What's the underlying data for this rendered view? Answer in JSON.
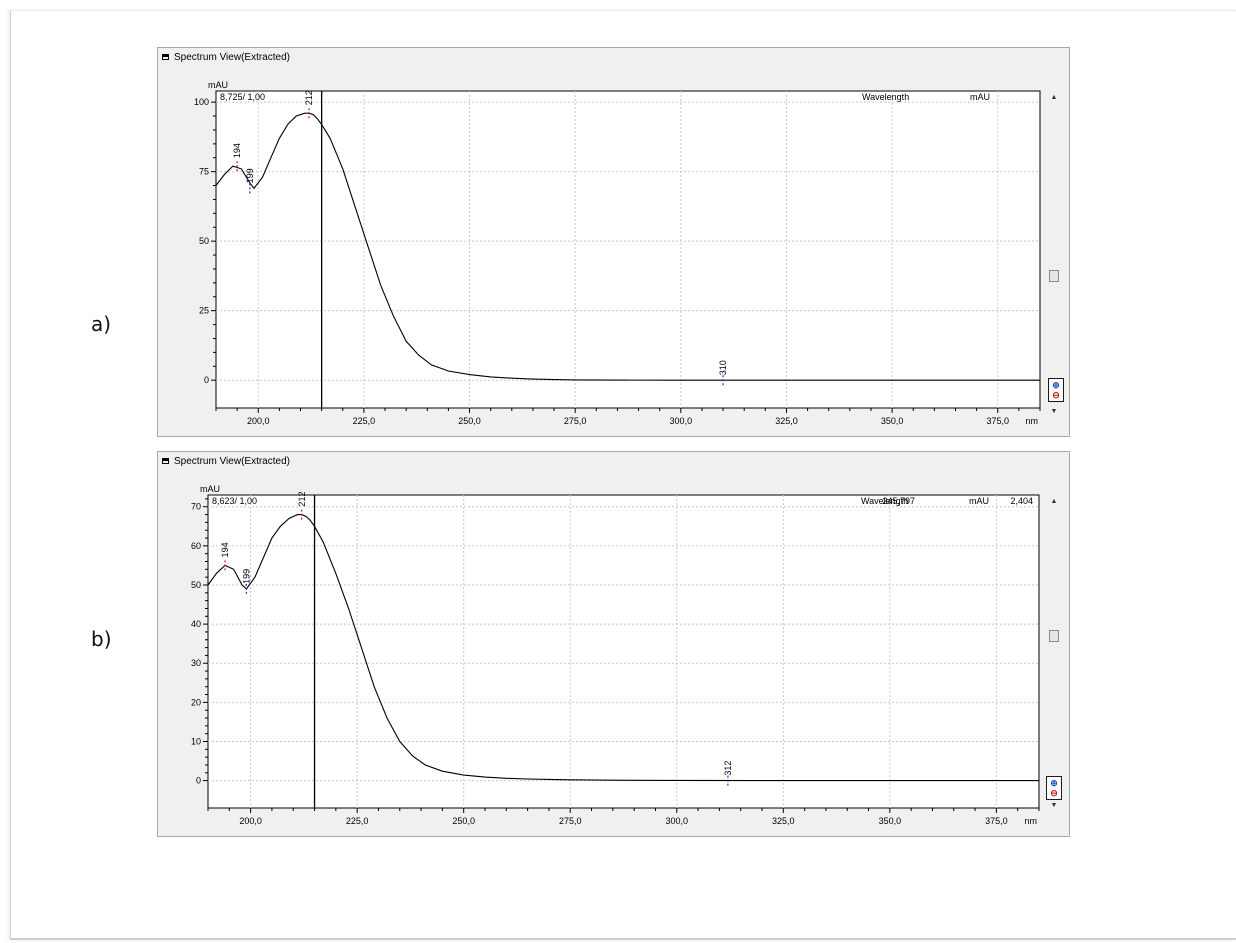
{
  "figure_labels": [
    "a)",
    "b)"
  ],
  "chart_data": [
    {
      "type": "line",
      "panel_title": "Spectrum View(Extracted)",
      "ylabel": "mAU",
      "xlabel": "nm",
      "corner_readout": "8,725/ 1,00",
      "readout_fields": [
        "Wavelength",
        "",
        "mAU",
        ""
      ],
      "xlim": [
        190,
        385
      ],
      "ylim": [
        -10,
        104
      ],
      "x_ticks": [
        200,
        225,
        250,
        275,
        300,
        325,
        350,
        375
      ],
      "x_tick_labels": [
        "200,0",
        "225,0",
        "250,0",
        "275,0",
        "300,0",
        "325,0",
        "350,0",
        "375,0"
      ],
      "y_ticks": [
        0,
        25,
        50,
        75,
        100
      ],
      "y_tick_labels": [
        "0",
        "25",
        "50",
        "75",
        "100"
      ],
      "cursor_x": 215,
      "grid": true,
      "series": [
        {
          "x": [
            190,
            192,
            194,
            196,
            198,
            199,
            201,
            203,
            205,
            207,
            209,
            211,
            212,
            213,
            214,
            215,
            217,
            220,
            223,
            226,
            229,
            232,
            235,
            238,
            241,
            245,
            250,
            255,
            260,
            265,
            270,
            275,
            285,
            300,
            320,
            340,
            360,
            385
          ],
          "y": [
            70,
            74,
            77,
            76,
            71,
            69,
            73,
            80,
            87,
            92,
            95,
            96,
            96,
            95.5,
            94,
            92,
            87,
            76,
            62,
            48,
            34,
            23,
            14,
            9,
            5.5,
            3.3,
            2,
            1.2,
            0.7,
            0.4,
            0.2,
            0.1,
            0.05,
            0,
            0,
            0,
            0,
            0
          ]
        }
      ],
      "peak_markers": [
        {
          "label": "194",
          "x": 195,
          "y": 77,
          "kind": "max"
        },
        {
          "label": "199",
          "x": 198,
          "y": 69,
          "kind": "min"
        },
        {
          "label": "212",
          "x": 212,
          "y": 96,
          "kind": "max"
        },
        {
          "label": "310",
          "x": 310,
          "y": 0,
          "kind": "min"
        }
      ]
    },
    {
      "type": "line",
      "panel_title": "Spectrum View(Extracted)",
      "ylabel": "mAU",
      "xlabel": "nm",
      "corner_readout": "8,623/ 1,00",
      "readout_fields": [
        "Wavelength",
        "245,797",
        "mAU",
        "2,404"
      ],
      "xlim": [
        190,
        385
      ],
      "ylim": [
        -7,
        73
      ],
      "x_ticks": [
        200,
        225,
        250,
        275,
        300,
        325,
        350,
        375
      ],
      "x_tick_labels": [
        "200,0",
        "225,0",
        "250,0",
        "275,0",
        "300,0",
        "325,0",
        "350,0",
        "375,0"
      ],
      "y_ticks": [
        0,
        10,
        20,
        30,
        40,
        50,
        60,
        70
      ],
      "y_tick_labels": [
        "0",
        "10",
        "20",
        "30",
        "40",
        "50",
        "60",
        "70"
      ],
      "cursor_x": 215,
      "grid": true,
      "series": [
        {
          "x": [
            190,
            192,
            194,
            196,
            198,
            199,
            201,
            203,
            205,
            207,
            209,
            211,
            212,
            213,
            214,
            215,
            217,
            220,
            223,
            226,
            229,
            232,
            235,
            238,
            241,
            245,
            250,
            255,
            260,
            265,
            270,
            275,
            285,
            300,
            320,
            340,
            360,
            385
          ],
          "y": [
            50,
            53,
            55,
            54,
            50,
            49,
            52,
            57,
            62,
            65,
            67,
            68,
            68,
            67.5,
            66.5,
            65,
            61,
            53,
            44,
            34,
            24,
            16,
            10,
            6.3,
            4,
            2.4,
            1.4,
            0.9,
            0.6,
            0.4,
            0.3,
            0.2,
            0.1,
            0.05,
            0,
            0,
            0,
            0
          ]
        }
      ],
      "peak_markers": [
        {
          "label": "194",
          "x": 194,
          "y": 55,
          "kind": "max"
        },
        {
          "label": "199",
          "x": 199,
          "y": 49,
          "kind": "min"
        },
        {
          "label": "212",
          "x": 212,
          "y": 68,
          "kind": "max"
        },
        {
          "label": "312",
          "x": 312,
          "y": 0,
          "kind": "min"
        }
      ]
    }
  ]
}
